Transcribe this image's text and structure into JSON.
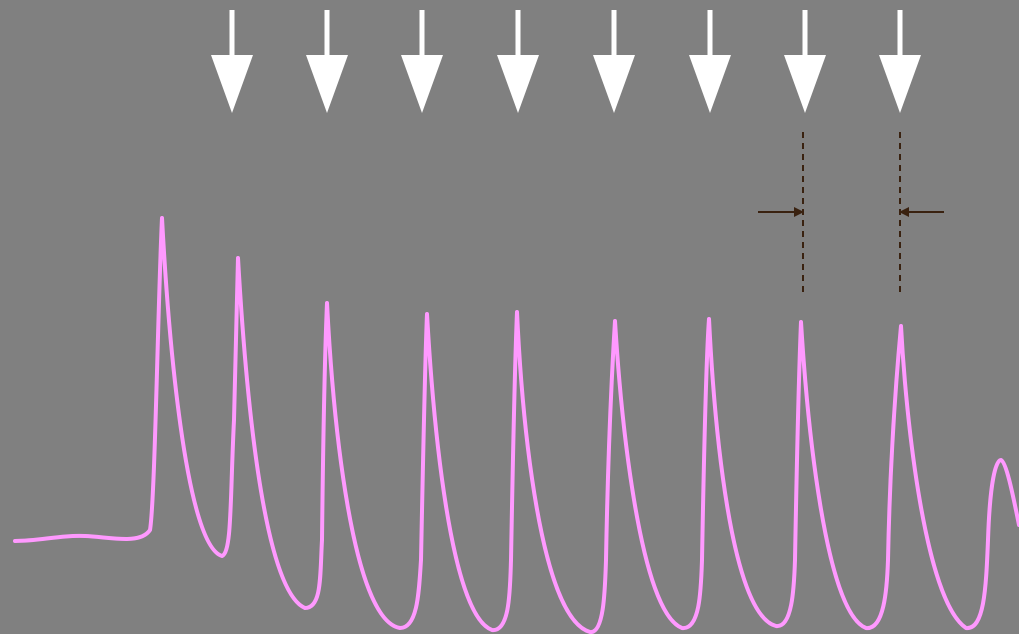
{
  "colors": {
    "background": "#808080",
    "stimulus_arrow": "#ffffff",
    "trace": "#ff99ff",
    "interval_marker": "#3a2210"
  },
  "icons": {
    "stimulus": "down-arrow-icon",
    "interval_left": "right-arrow-icon",
    "interval_right": "left-arrow-icon"
  },
  "stimuli": {
    "count": 8
  },
  "trace": {
    "peak_count": 9
  }
}
